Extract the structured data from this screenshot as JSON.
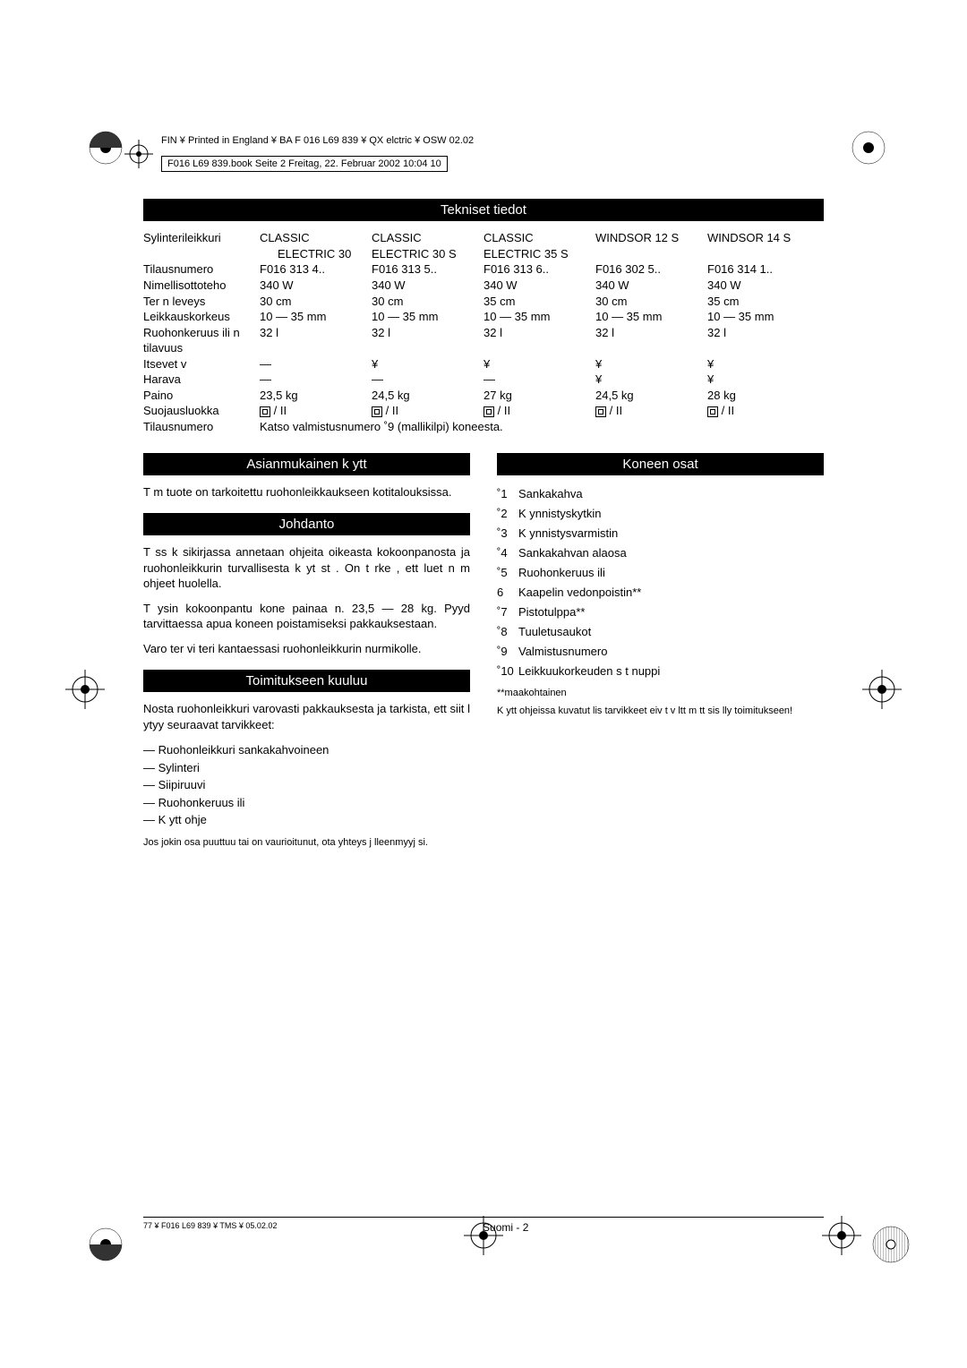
{
  "header": {
    "line1": "FIN ¥ Printed in England ¥ BA F 016 L69 839 ¥ QX elctric ¥ OSW 02.02",
    "box": "F016 L69 839.book  Seite 2  Freitag, 22. Februar 2002  10:04 10"
  },
  "sections": {
    "tech": "Tekniset tiedot",
    "usage": "Asianmukainen k ytt",
    "intro": "Johdanto",
    "delivery": "Toimitukseen kuuluu",
    "parts": "Koneen osat"
  },
  "spec": {
    "row_header": {
      "label": "Sylinterileikkuri",
      "c1": "CLASSIC",
      "c2": "CLASSIC",
      "c3": "CLASSIC",
      "c4": "WINDSOR 12 S",
      "c5": "WINDSOR 14 S"
    },
    "row_header2": {
      "label": "",
      "c1": "ELECTRIC 30",
      "c2": "ELECTRIC 30 S",
      "c3": "ELECTRIC 35 S",
      "c4": "",
      "c5": ""
    },
    "rows": [
      {
        "label": "Tilausnumero",
        "c1": "F016 313 4..",
        "c2": "F016 313 5..",
        "c3": "F016 313 6..",
        "c4": "F016 302 5..",
        "c5": "F016 314 1.."
      },
      {
        "label": "Nimellisottoteho",
        "c1": "340 W",
        "c2": "340 W",
        "c3": "340 W",
        "c4": "340 W",
        "c5": "340 W"
      },
      {
        "label": "Ter n leveys",
        "c1": "30 cm",
        "c2": "30 cm",
        "c3": "35 cm",
        "c4": "30 cm",
        "c5": "35 cm"
      },
      {
        "label": "Leikkauskorkeus",
        "c1": "10 — 35 mm",
        "c2": "10 — 35 mm",
        "c3": "10 — 35 mm",
        "c4": "10 — 35 mm",
        "c5": "10 — 35 mm"
      },
      {
        "label": "Ruohonkeruus ili n tilavuus",
        "c1": "32 l",
        "c2": "32 l",
        "c3": "32 l",
        "c4": "32 l",
        "c5": "32 l"
      },
      {
        "label": "Itsevet v",
        "c1": "—",
        "c2": "¥",
        "c3": "¥",
        "c4": "¥",
        "c5": "¥"
      },
      {
        "label": "Harava",
        "c1": "—",
        "c2": "—",
        "c3": "—",
        "c4": "¥",
        "c5": "¥"
      },
      {
        "label": "Paino",
        "c1": "23,5 kg",
        "c2": "24,5 kg",
        "c3": "27 kg",
        "c4": "24,5 kg",
        "c5": "28 kg"
      }
    ],
    "protection_label": "Suojausluokka",
    "protection_value": " / II",
    "order_label": "Tilausnumero",
    "order_value": "Katso valmistusnumero ˚9 (mallikilpi) koneesta."
  },
  "usage_text": "T m  tuote on tarkoitettu ruohonleikkaukseen kotitalouksissa.",
  "intro_p1": "T ss  k sikirjassa annetaan ohjeita oikeasta kokoonpanosta ja ruohonleikkurin turvallisesta k yt st . On t rke , ett  luet n m  ohjeet huolella.",
  "intro_p2": "T ysin kokoonpantu kone painaa n. 23,5 — 28 kg. Pyyd  tarvittaessa apua koneen poistamiseksi pakkauksestaan.",
  "intro_p3": "Varo ter vi  teri  kantaessasi ruohonleikkurin nurmikolle.",
  "delivery_intro": "Nosta ruohonleikkuri varovasti pakkauksesta ja tarkista, ett  siit  l ytyy seuraavat tarvikkeet:",
  "delivery_items": [
    "Ruohonleikkuri sankakahvoineen",
    "Sylinteri",
    "Siipiruuvi",
    "Ruohonkeruus ili",
    "K ytt ohje"
  ],
  "delivery_note": "Jos jokin osa puuttuu tai on vaurioitunut, ota yhteys j lleenmyyj  si.",
  "parts_list": [
    {
      "n": "˚1",
      "t": "Sankakahva"
    },
    {
      "n": "˚2",
      "t": "K ynnistyskytkin"
    },
    {
      "n": "˚3",
      "t": "K ynnistysvarmistin"
    },
    {
      "n": "˚4",
      "t": "Sankakahvan alaosa"
    },
    {
      "n": "˚5",
      "t": "Ruohonkeruus ili"
    },
    {
      "n": "6",
      "t": "Kaapelin vedonpoistin**"
    },
    {
      "n": "˚7",
      "t": "Pistotulppa**"
    },
    {
      "n": "˚8",
      "t": "Tuuletusaukot"
    },
    {
      "n": "˚9",
      "t": "Valmistusnumero"
    },
    {
      "n": "˚10",
      "t": "Leikkuukorkeuden s t nuppi"
    }
  ],
  "parts_note1": "**maakohtainen",
  "parts_note2": "K ytt ohjeissa kuvatut lis tarvikkeet eiv t v ltt m tt  sis lly toimitukseen!",
  "footer": {
    "left": "77 ¥ F016 L69 839 ¥ TMS ¥ 05.02.02",
    "center": "Suomi - 2"
  }
}
